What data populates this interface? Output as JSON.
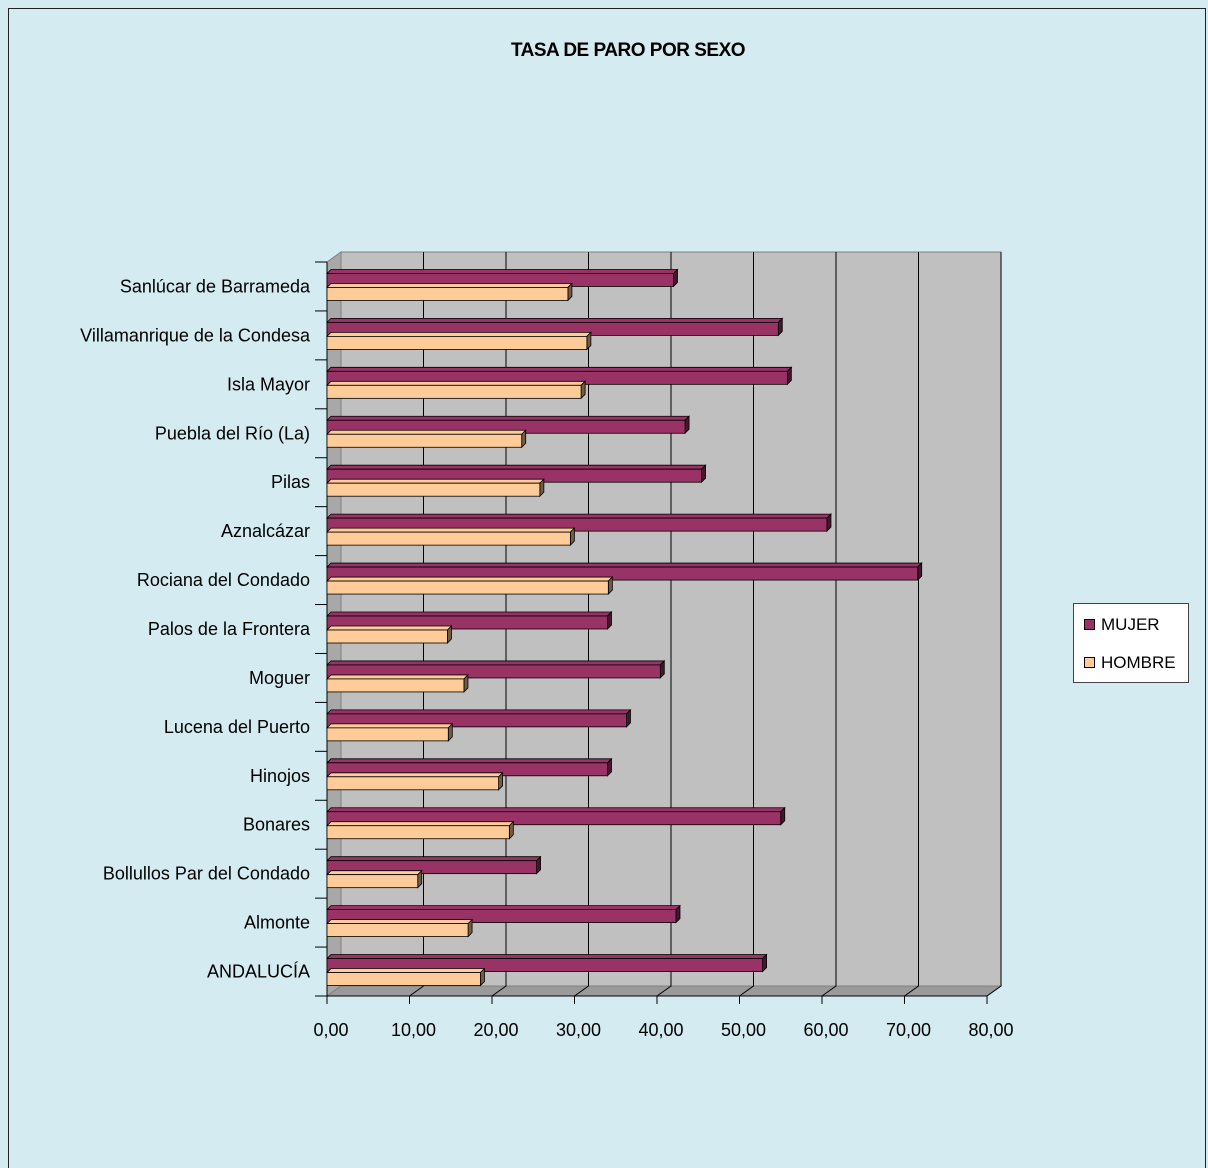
{
  "chart_data": {
    "type": "bar",
    "orientation": "horizontal",
    "title": "TASA DE PARO POR SEXO",
    "categories": [
      "Sanlúcar de Barrameda",
      "Villamanrique de la Condesa",
      "Isla Mayor",
      "Puebla del Río (La)",
      "Pilas",
      "Aznalcázar",
      "Rociana del Condado",
      "Palos de la Frontera",
      "Moguer",
      "Lucena del Puerto",
      "Hinojos",
      "Bonares",
      "Bollullos Par del Condado",
      "Almonte",
      "ANDALUCÍA"
    ],
    "series": [
      {
        "name": "MUJER",
        "color": "#993366",
        "values": [
          42.0,
          54.7,
          55.8,
          43.4,
          45.4,
          60.6,
          71.6,
          34.0,
          40.4,
          36.3,
          34.0,
          55.0,
          25.4,
          42.3,
          52.8
        ]
      },
      {
        "name": "HOMBRE",
        "color": "#ffcc99",
        "values": [
          29.2,
          31.5,
          30.8,
          23.6,
          25.8,
          29.5,
          34.1,
          14.6,
          16.6,
          14.7,
          20.8,
          22.1,
          11.0,
          17.1,
          18.6
        ]
      }
    ],
    "xlim": [
      0,
      80
    ],
    "x_ticks": [
      "0,00",
      "10,00",
      "20,00",
      "30,00",
      "40,00",
      "50,00",
      "60,00",
      "70,00",
      "80,00"
    ],
    "grid": true,
    "legend_position": "right"
  }
}
